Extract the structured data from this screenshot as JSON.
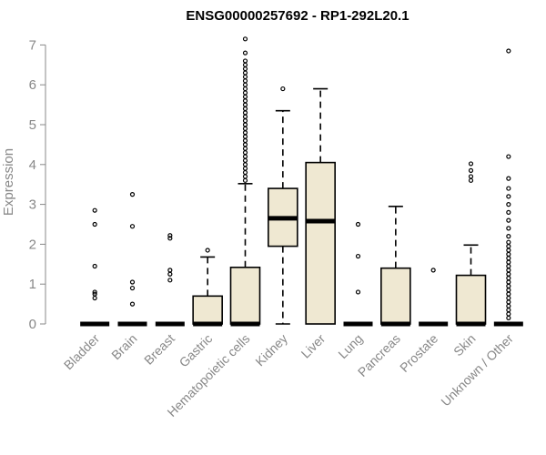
{
  "chart_data": {
    "type": "boxplot",
    "title": "ENSG00000257692 - RP1-292L20.1",
    "xlabel": "",
    "ylabel": "Expression",
    "ylim": [
      0,
      7.2
    ],
    "yticks": [
      0,
      1,
      2,
      3,
      4,
      5,
      6,
      7
    ],
    "box_fill": "#efe8d2",
    "categories": [
      "Bladder",
      "Brain",
      "Breast",
      "Gastric",
      "Hematopoietic cells",
      "Kidney",
      "Liver",
      "Lung",
      "Pancreas",
      "Prostate",
      "Skin",
      "Unknown / Other"
    ],
    "boxes": [
      {
        "q1": 0,
        "median": 0,
        "q3": 0,
        "whisker_low": 0,
        "whisker_high": 0,
        "outliers": [
          0.65,
          0.75,
          0.8,
          1.45,
          2.5,
          2.85
        ]
      },
      {
        "q1": 0,
        "median": 0,
        "q3": 0,
        "whisker_low": 0,
        "whisker_high": 0,
        "outliers": [
          0.5,
          0.9,
          1.05,
          2.45,
          3.25
        ]
      },
      {
        "q1": 0,
        "median": 0,
        "q3": 0,
        "whisker_low": 0,
        "whisker_high": 0,
        "outliers": [
          1.1,
          1.25,
          1.35,
          2.15,
          2.22
        ]
      },
      {
        "q1": 0,
        "median": 0,
        "q3": 0.7,
        "whisker_low": 0,
        "whisker_high": 1.68,
        "outliers": [
          1.85
        ]
      },
      {
        "q1": 0,
        "median": 0,
        "q3": 1.42,
        "whisker_low": 0,
        "whisker_high": 3.52,
        "outliers": [
          3.6,
          3.7,
          3.8,
          3.9,
          4.0,
          4.1,
          4.2,
          4.3,
          4.4,
          4.5,
          4.6,
          4.7,
          4.8,
          4.9,
          5.0,
          5.1,
          5.2,
          5.3,
          5.4,
          5.5,
          5.6,
          5.7,
          5.8,
          5.9,
          6.0,
          6.1,
          6.2,
          6.3,
          6.4,
          6.5,
          6.6,
          6.8,
          7.15
        ]
      },
      {
        "q1": 1.95,
        "median": 2.65,
        "q3": 3.4,
        "whisker_low": 0,
        "whisker_high": 5.35,
        "outliers": [
          5.9
        ]
      },
      {
        "q1": 0,
        "median": 2.58,
        "q3": 4.05,
        "whisker_low": 0,
        "whisker_high": 5.9,
        "outliers": []
      },
      {
        "q1": 0,
        "median": 0,
        "q3": 0,
        "whisker_low": 0,
        "whisker_high": 0,
        "outliers": [
          0.8,
          1.7,
          2.5
        ]
      },
      {
        "q1": 0,
        "median": 0,
        "q3": 1.4,
        "whisker_low": 0,
        "whisker_high": 2.95,
        "outliers": []
      },
      {
        "q1": 0,
        "median": 0,
        "q3": 0,
        "whisker_low": 0,
        "whisker_high": 0,
        "outliers": [
          1.35
        ]
      },
      {
        "q1": 0,
        "median": 0,
        "q3": 1.22,
        "whisker_low": 0,
        "whisker_high": 1.98,
        "outliers": [
          3.6,
          3.7,
          3.85,
          4.02
        ]
      },
      {
        "q1": 0,
        "median": 0,
        "q3": 0,
        "whisker_low": 0,
        "whisker_high": 0,
        "outliers": [
          0.15,
          0.25,
          0.35,
          0.45,
          0.55,
          0.65,
          0.75,
          0.85,
          0.95,
          1.05,
          1.15,
          1.25,
          1.35,
          1.45,
          1.55,
          1.65,
          1.75,
          1.85,
          1.95,
          2.05,
          2.2,
          2.4,
          2.6,
          2.8,
          3.0,
          3.2,
          3.4,
          3.65,
          4.2,
          6.85
        ]
      }
    ]
  }
}
